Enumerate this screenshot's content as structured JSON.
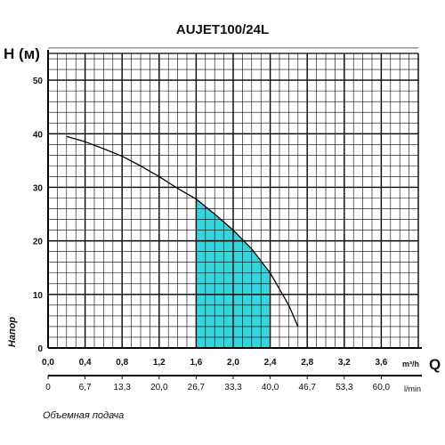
{
  "chart_data": {
    "type": "line",
    "title": "AUJET100/24L",
    "ylabel": "H (м)",
    "ylabel_side": "Напор",
    "xlabel": "Q",
    "xlabel_bottom": "Объемная подача",
    "x_unit": "m³/h",
    "x2_unit": "l/min",
    "xlim": [
      0,
      4.0
    ],
    "ylim": [
      0,
      55
    ],
    "xticks": [
      "0,0",
      "0,4",
      "0,8",
      "1,2",
      "1,6",
      "2,0",
      "2,4",
      "2,8",
      "3,2",
      "3,6"
    ],
    "xticks_values": [
      0,
      0.4,
      0.8,
      1.2,
      1.6,
      2.0,
      2.4,
      2.8,
      3.2,
      3.6
    ],
    "x2ticks": [
      "0",
      "6,7",
      "13,3",
      "20,0",
      "26,7",
      "33,3",
      "40,0",
      "46,7",
      "53,3",
      "60,0"
    ],
    "yticks": [
      "0",
      "10",
      "20",
      "30",
      "40",
      "50"
    ],
    "yticks_values": [
      0,
      10,
      20,
      30,
      40,
      50
    ],
    "grid": true,
    "series": [
      {
        "x": [
          0.2,
          0.4,
          0.6,
          0.8,
          1.0,
          1.2,
          1.4,
          1.6,
          1.8,
          2.0,
          2.2,
          2.4,
          2.6,
          2.7
        ],
        "y": [
          39.5,
          38.5,
          37.2,
          35.8,
          34.0,
          32.0,
          29.8,
          27.8,
          25.0,
          22.0,
          18.5,
          14.0,
          8.0,
          4.0
        ],
        "color": "#000000"
      }
    ],
    "highlight_range": {
      "x": [
        1.6,
        2.4
      ],
      "color": "#33d6dc"
    }
  }
}
